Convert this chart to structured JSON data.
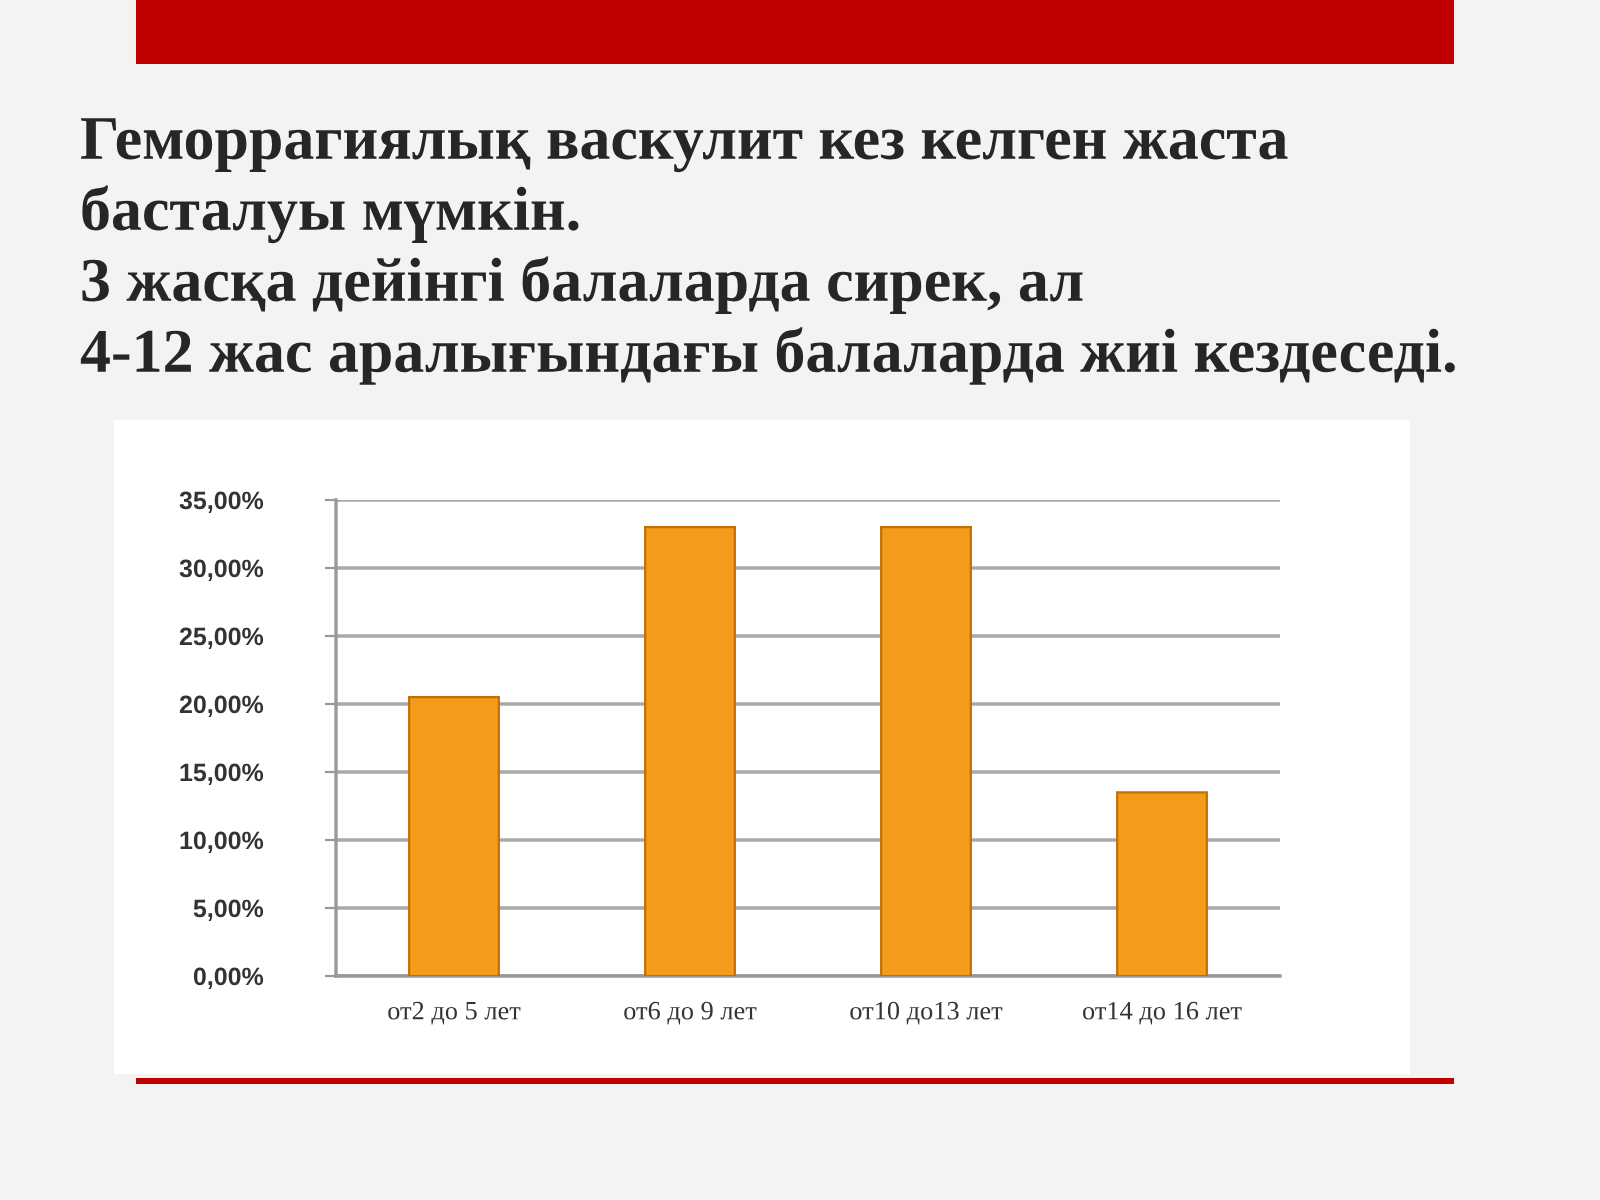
{
  "chart_data": {
    "type": "bar",
    "title": "Геморрагиялық васкулит кез келген жаста\nбасталуы мүмкін.\n3 жасқа дейінгі балаларда сирек, ал\n4-12 жас аралығындағы балаларда жиі кездеседі.",
    "categories": [
      "от2 до 5 лет",
      "от6 до 9 лет",
      "от10 до13 лет",
      "от14 до 16 лет"
    ],
    "values": [
      20.5,
      33,
      33,
      13.5
    ],
    "color": "#f49b1c",
    "ylim": [
      0,
      35
    ],
    "yticks": [
      {
        "value": 0,
        "label": "0,00%"
      },
      {
        "value": 5,
        "label": "5,00%"
      },
      {
        "value": 10,
        "label": "10,00%"
      },
      {
        "value": 15,
        "label": "15,00%"
      },
      {
        "value": 20,
        "label": "20,00%"
      },
      {
        "value": 25,
        "label": "25,00%"
      },
      {
        "value": 30,
        "label": "30,00%"
      },
      {
        "value": 35,
        "label": "35,00%"
      }
    ],
    "grid": "y"
  }
}
